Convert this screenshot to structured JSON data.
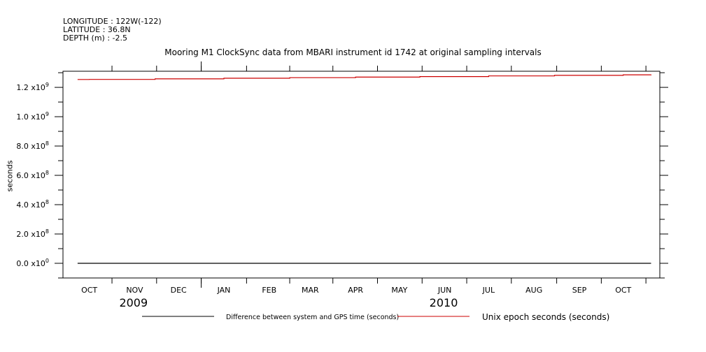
{
  "header": {
    "longitude": "LONGITUDE : 122W(-122)",
    "latitude": "LATITUDE : 36.8N",
    "depth": "DEPTH (m) : -2.5"
  },
  "chart_data": {
    "type": "line",
    "title": "Mooring M1 ClockSync data from MBARI instrument id 1742 at original sampling intervals",
    "ylabel": "seconds",
    "xlim": [
      "2009-09-13",
      "2010-10-26"
    ],
    "ylim": [
      -100000000,
      1310000000
    ],
    "y_ticks": [
      {
        "value": 0,
        "mant": "0.0",
        "exp": "0"
      },
      {
        "value": 200000000,
        "mant": "2.0",
        "exp": "8"
      },
      {
        "value": 400000000,
        "mant": "4.0",
        "exp": "8"
      },
      {
        "value": 600000000,
        "mant": "6.0",
        "exp": "8"
      },
      {
        "value": 800000000,
        "mant": "8.0",
        "exp": "8"
      },
      {
        "value": 1000000000,
        "mant": "1.0",
        "exp": "9"
      },
      {
        "value": 1200000000,
        "mant": "1.2",
        "exp": "9"
      }
    ],
    "x_month_labels": [
      {
        "date": "2009-10-01",
        "label": "OCT"
      },
      {
        "date": "2009-11-01",
        "label": "NOV"
      },
      {
        "date": "2009-12-01",
        "label": "DEC"
      },
      {
        "date": "2010-01-01",
        "label": "JAN"
      },
      {
        "date": "2010-02-01",
        "label": "FEB"
      },
      {
        "date": "2010-03-01",
        "label": "MAR"
      },
      {
        "date": "2010-04-01",
        "label": "APR"
      },
      {
        "date": "2010-05-01",
        "label": "MAY"
      },
      {
        "date": "2010-06-01",
        "label": "JUN"
      },
      {
        "date": "2010-07-01",
        "label": "JUL"
      },
      {
        "date": "2010-08-01",
        "label": "AUG"
      },
      {
        "date": "2010-09-01",
        "label": "SEP"
      },
      {
        "date": "2010-10-01",
        "label": "OCT"
      }
    ],
    "year_labels": [
      {
        "label": "2009",
        "date": "2009-11-01"
      },
      {
        "label": "2010",
        "date": "2010-06-01"
      }
    ],
    "series": [
      {
        "name": "Difference between system and GPS time (seconds)",
        "color": "#000000",
        "x": [
          "2009-09-23",
          "2010-10-20"
        ],
        "y": [
          0,
          0
        ]
      },
      {
        "name": "Unix epoch seconds (seconds)",
        "color": "#cc0000",
        "x": [
          "2009-09-23",
          "2009-10-01",
          "2009-11-15",
          "2010-01-01",
          "2010-02-15",
          "2010-04-01",
          "2010-05-15",
          "2010-07-01",
          "2010-08-15",
          "2010-10-01",
          "2010-10-20"
        ],
        "y": [
          1253700000,
          1254400000,
          1258300000,
          1262300000,
          1266200000,
          1270100000,
          1273900000,
          1277900000,
          1281800000,
          1285900000,
          1287500000
        ]
      }
    ]
  }
}
